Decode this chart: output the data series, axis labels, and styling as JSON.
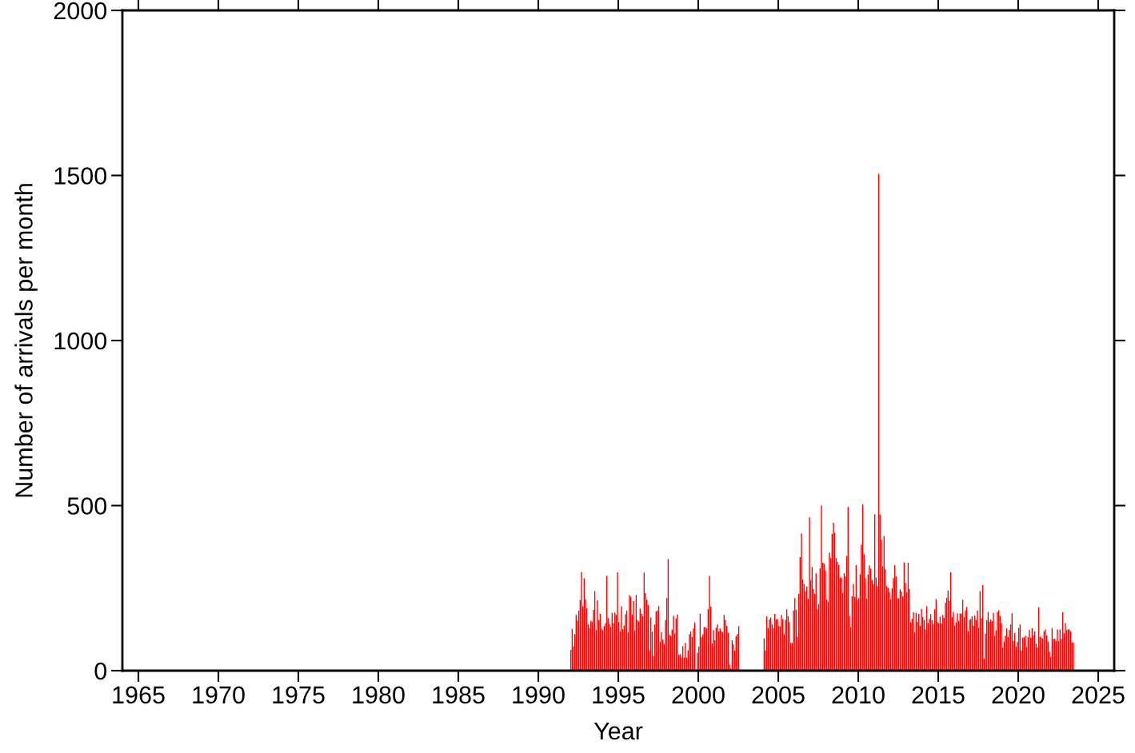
{
  "chart_data": {
    "type": "bar",
    "xlabel": "Year",
    "ylabel": "Number of arrivals per month",
    "color": "#ff0000",
    "xlim": [
      "1964",
      "2026"
    ],
    "xticks": [
      "1965",
      "1970",
      "1975",
      "1980",
      "1985",
      "1990",
      "1995",
      "2000",
      "2005",
      "2010",
      "2015",
      "2020",
      "2025"
    ],
    "ylim": [
      0,
      2000
    ],
    "yticks": [
      0,
      500,
      1000,
      1500,
      2000
    ],
    "grid": false,
    "legend": false,
    "x": [
      "1992-01",
      "1992-02",
      "1992-03",
      "1992-04",
      "1992-05",
      "1992-06",
      "1992-07",
      "1992-08",
      "1992-09",
      "1992-10",
      "1992-11",
      "1992-12",
      "1993-01",
      "1993-02",
      "1993-03",
      "1993-04",
      "1993-05",
      "1993-06",
      "1993-07",
      "1993-08",
      "1993-09",
      "1993-10",
      "1993-11",
      "1993-12",
      "1994-01",
      "1994-02",
      "1994-03",
      "1994-04",
      "1994-05",
      "1994-06",
      "1994-07",
      "1994-08",
      "1994-09",
      "1994-10",
      "1994-11",
      "1994-12",
      "1995-01",
      "1995-02",
      "1995-03",
      "1995-04",
      "1995-05",
      "1995-06",
      "1995-07",
      "1995-08",
      "1995-09",
      "1995-10",
      "1995-11",
      "1995-12",
      "1996-01",
      "1996-02",
      "1996-03",
      "1996-04",
      "1996-05",
      "1996-06",
      "1996-07",
      "1996-08",
      "1996-09",
      "1996-10",
      "1996-11",
      "1996-12",
      "1997-01",
      "1997-02",
      "1997-03",
      "1997-04",
      "1997-05",
      "1997-06",
      "1997-07",
      "1997-08",
      "1997-09",
      "1997-10",
      "1997-11",
      "1997-12",
      "1998-01",
      "1998-02",
      "1998-03",
      "1998-04",
      "1998-05",
      "1998-06",
      "1998-07",
      "1998-08",
      "1998-09",
      "1998-10",
      "1998-11",
      "1998-12",
      "1999-01",
      "1999-02",
      "1999-03",
      "1999-04",
      "1999-05",
      "1999-06",
      "1999-07",
      "1999-08",
      "1999-09",
      "1999-10",
      "1999-11",
      "1999-12",
      "2000-01",
      "2000-02",
      "2000-03",
      "2000-04",
      "2000-05",
      "2000-06",
      "2000-07",
      "2000-08",
      "2000-09",
      "2000-10",
      "2000-11",
      "2000-12",
      "2001-01",
      "2001-02",
      "2001-03",
      "2001-04",
      "2001-05",
      "2001-06",
      "2001-07",
      "2001-08",
      "2001-09",
      "2001-10",
      "2001-11",
      "2001-12",
      "2002-01",
      "2002-02",
      "2002-03",
      "2002-04",
      "2002-05",
      "2002-06",
      "2002-07",
      "2002-08",
      "2002-09",
      "2002-10",
      "2002-11",
      "2002-12",
      "2003-01",
      "2003-02",
      "2003-03",
      "2003-04",
      "2003-05",
      "2003-06",
      "2003-07",
      "2003-08",
      "2003-09",
      "2003-10",
      "2003-11",
      "2003-12",
      "2004-01",
      "2004-02",
      "2004-03",
      "2004-04",
      "2004-05",
      "2004-06",
      "2004-07",
      "2004-08",
      "2004-09",
      "2004-10",
      "2004-11",
      "2004-12",
      "2005-01",
      "2005-02",
      "2005-03",
      "2005-04",
      "2005-05",
      "2005-06",
      "2005-07",
      "2005-08",
      "2005-09",
      "2005-10",
      "2005-11",
      "2005-12",
      "2006-01",
      "2006-02",
      "2006-03",
      "2006-04",
      "2006-05",
      "2006-06",
      "2006-07",
      "2006-08",
      "2006-09",
      "2006-10",
      "2006-11",
      "2006-12",
      "2007-01",
      "2007-02",
      "2007-03",
      "2007-04",
      "2007-05",
      "2007-06",
      "2007-07",
      "2007-08",
      "2007-09",
      "2007-10",
      "2007-11",
      "2007-12",
      "2008-01",
      "2008-02",
      "2008-03",
      "2008-04",
      "2008-05",
      "2008-06",
      "2008-07",
      "2008-08",
      "2008-09",
      "2008-10",
      "2008-11",
      "2008-12",
      "2009-01",
      "2009-02",
      "2009-03",
      "2009-04",
      "2009-05",
      "2009-06",
      "2009-07",
      "2009-08",
      "2009-09",
      "2009-10",
      "2009-11",
      "2009-12",
      "2010-01",
      "2010-02",
      "2010-03",
      "2010-04",
      "2010-05",
      "2010-06",
      "2010-07",
      "2010-08",
      "2010-09",
      "2010-10",
      "2010-11",
      "2010-12",
      "2011-01",
      "2011-02",
      "2011-03",
      "2011-04",
      "2011-05",
      "2011-06",
      "2011-07",
      "2011-08",
      "2011-09",
      "2011-10",
      "2011-11",
      "2011-12",
      "2012-01",
      "2012-02",
      "2012-03",
      "2012-04",
      "2012-05",
      "2012-06",
      "2012-07",
      "2012-08",
      "2012-09",
      "2012-10",
      "2012-11",
      "2012-12",
      "2013-01",
      "2013-02",
      "2013-03",
      "2013-04",
      "2013-05",
      "2013-06",
      "2013-07",
      "2013-08",
      "2013-09",
      "2013-10",
      "2013-11",
      "2013-12",
      "2014-01",
      "2014-02",
      "2014-03",
      "2014-04",
      "2014-05",
      "2014-06",
      "2014-07",
      "2014-08",
      "2014-09",
      "2014-10",
      "2014-11",
      "2014-12",
      "2015-01",
      "2015-02",
      "2015-03",
      "2015-04",
      "2015-05",
      "2015-06",
      "2015-07",
      "2015-08",
      "2015-09",
      "2015-10",
      "2015-11",
      "2015-12",
      "2016-01",
      "2016-02",
      "2016-03",
      "2016-04",
      "2016-05",
      "2016-06",
      "2016-07",
      "2016-08",
      "2016-09",
      "2016-10",
      "2016-11",
      "2016-12",
      "2017-01",
      "2017-02",
      "2017-03",
      "2017-04",
      "2017-05",
      "2017-06",
      "2017-07",
      "2017-08",
      "2017-09",
      "2017-10",
      "2017-11",
      "2017-12",
      "2018-01",
      "2018-02",
      "2018-03",
      "2018-04",
      "2018-05",
      "2018-06",
      "2018-07",
      "2018-08",
      "2018-09",
      "2018-10",
      "2018-11",
      "2018-12",
      "2019-01",
      "2019-02",
      "2019-03",
      "2019-04",
      "2019-05",
      "2019-06",
      "2019-07",
      "2019-08",
      "2019-09",
      "2019-10",
      "2019-11",
      "2019-12",
      "2020-01",
      "2020-02",
      "2020-03",
      "2020-04",
      "2020-05",
      "2020-06",
      "2020-07",
      "2020-08",
      "2020-09",
      "2020-10",
      "2020-11",
      "2020-12",
      "2021-01",
      "2021-02",
      "2021-03",
      "2021-04",
      "2021-05",
      "2021-06",
      "2021-07",
      "2021-08",
      "2021-09",
      "2021-10",
      "2021-11",
      "2021-12",
      "2022-01",
      "2022-02",
      "2022-03",
      "2022-04",
      "2022-05",
      "2022-06",
      "2022-07",
      "2022-08",
      "2022-09",
      "2022-10",
      "2022-11",
      "2022-12",
      "2023-01",
      "2023-02",
      "2023-03",
      "2023-04",
      "2023-05",
      "2023-06"
    ],
    "values": [
      63,
      127,
      73,
      111,
      169,
      151,
      182,
      214,
      299,
      195,
      280,
      217,
      189,
      140,
      129,
      151,
      148,
      184,
      241,
      123,
      213,
      153,
      173,
      128,
      123,
      135,
      143,
      287,
      159,
      141,
      132,
      175,
      144,
      176,
      169,
      298,
      148,
      119,
      195,
      126,
      136,
      171,
      182,
      116,
      229,
      224,
      170,
      211,
      122,
      229,
      153,
      149,
      188,
      172,
      165,
      297,
      235,
      215,
      199,
      62,
      161,
      118,
      44,
      140,
      179,
      182,
      196,
      88,
      116,
      94,
      81,
      153,
      220,
      338,
      109,
      106,
      124,
      166,
      112,
      158,
      170,
      48,
      50,
      40,
      74,
      40,
      84,
      40,
      61,
      111,
      119,
      102,
      128,
      146,
      0,
      54,
      73,
      173,
      101,
      110,
      132,
      132,
      128,
      186,
      287,
      194,
      82,
      123,
      92,
      130,
      140,
      119,
      128,
      119,
      116,
      169,
      154,
      136,
      115,
      19,
      7,
      92,
      79,
      61,
      105,
      111,
      135,
      null,
      null,
      null,
      null,
      null,
      null,
      null,
      null,
      null,
      null,
      null,
      null,
      null,
      null,
      null,
      null,
      null,
      null,
      98,
      62,
      165,
      129,
      155,
      161,
      140,
      129,
      172,
      155,
      157,
      136,
      134,
      169,
      156,
      110,
      154,
      186,
      165,
      147,
      84,
      84,
      182,
      220,
      185,
      102,
      233,
      344,
      416,
      276,
      262,
      241,
      255,
      218,
      464,
      274,
      314,
      247,
      233,
      295,
      186,
      202,
      310,
      500,
      327,
      323,
      303,
      216,
      209,
      358,
      341,
      414,
      448,
      418,
      341,
      330,
      321,
      282,
      282,
      236,
      295,
      286,
      348,
      496,
      165,
      132,
      225,
      263,
      223,
      320,
      215,
      220,
      292,
      382,
      504,
      353,
      280,
      219,
      292,
      319,
      309,
      274,
      262,
      474,
      282,
      256,
      1505,
      473,
      397,
      316,
      408,
      307,
      256,
      251,
      238,
      217,
      249,
      280,
      320,
      286,
      219,
      219,
      246,
      240,
      225,
      328,
      266,
      238,
      327,
      247,
      147,
      157,
      177,
      116,
      175,
      148,
      172,
      136,
      187,
      163,
      153,
      125,
      195,
      144,
      157,
      171,
      153,
      141,
      186,
      217,
      148,
      144,
      164,
      143,
      169,
      160,
      206,
      220,
      243,
      211,
      298,
      162,
      178,
      136,
      146,
      174,
      151,
      173,
      173,
      215,
      162,
      182,
      193,
      120,
      153,
      157,
      165,
      136,
      167,
      153,
      182,
      130,
      241,
      159,
      259,
      36,
      112,
      153,
      178,
      148,
      155,
      150,
      175,
      106,
      122,
      178,
      183,
      166,
      144,
      70,
      88,
      106,
      128,
      102,
      123,
      140,
      174,
      90,
      115,
      73,
      87,
      130,
      140,
      61,
      100,
      101,
      106,
      72,
      101,
      124,
      100,
      129,
      107,
      119,
      82,
      70,
      192,
      102,
      101,
      97,
      119,
      125,
      107,
      88,
      58,
      42,
      129,
      96,
      97,
      90,
      125,
      90,
      125,
      96,
      177,
      113,
      144,
      123,
      125,
      125,
      119,
      85,
      86
    ]
  }
}
